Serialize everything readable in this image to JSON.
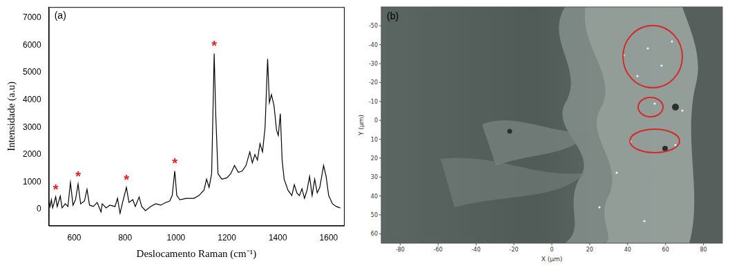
{
  "chart_data": {
    "type": "line",
    "panel": "(a)",
    "xlabel": "Deslocamento Raman (cm⁻¹)",
    "ylabel": "Intensidade (a.u)",
    "color": "#000000",
    "grid": false,
    "x": [
      500,
      505,
      510,
      515,
      520,
      527,
      533,
      545,
      552,
      565,
      575,
      585,
      595,
      605,
      615,
      625,
      640,
      650,
      660,
      675,
      690,
      705,
      710,
      725,
      740,
      760,
      770,
      780,
      790,
      805,
      815,
      830,
      840,
      855,
      865,
      880,
      900,
      920,
      940,
      960,
      975,
      985,
      995,
      1003,
      1015,
      1040,
      1070,
      1090,
      1110,
      1120,
      1130,
      1140,
      1150,
      1156,
      1165,
      1180,
      1200,
      1215,
      1230,
      1245,
      1260,
      1275,
      1290,
      1300,
      1310,
      1320,
      1330,
      1340,
      1350,
      1360,
      1367,
      1375,
      1385,
      1395,
      1402,
      1410,
      1417,
      1425,
      1440,
      1455,
      1465,
      1475,
      1485,
      1495,
      1505,
      1515,
      1525,
      1535,
      1545,
      1555,
      1565,
      1580,
      1590,
      1600,
      1615,
      1630,
      1645
    ],
    "values": [
      300,
      100,
      350,
      50,
      200,
      460,
      100,
      480,
      50,
      200,
      100,
      980,
      150,
      350,
      930,
      200,
      300,
      730,
      150,
      100,
      250,
      -100,
      200,
      50,
      150,
      100,
      400,
      -150,
      250,
      800,
      250,
      350,
      100,
      450,
      100,
      -50,
      100,
      200,
      150,
      250,
      300,
      500,
      1400,
      500,
      350,
      400,
      400,
      500,
      700,
      1100,
      800,
      1300,
      5700,
      3500,
      1300,
      1100,
      1150,
      1300,
      1600,
      1350,
      1400,
      1600,
      2100,
      1700,
      2000,
      1800,
      2400,
      2100,
      3000,
      5500,
      3900,
      4200,
      3800,
      2900,
      2700,
      3500,
      1800,
      1100,
      700,
      500,
      900,
      600,
      500,
      750,
      400,
      700,
      1200,
      500,
      1100,
      600,
      800,
      1600,
      1200,
      500,
      200,
      100,
      50
    ],
    "xlim": [
      500,
      1660
    ],
    "xticks": [
      600,
      800,
      1000,
      1200,
      1400,
      1600
    ],
    "ylim": [
      -600,
      7400
    ],
    "yticks": [
      0,
      1000,
      2000,
      3000,
      4000,
      5000,
      6000,
      7000
    ],
    "annotations": [
      {
        "text": "*",
        "x": 527,
        "y": 700,
        "color": "#e02020"
      },
      {
        "text": "*",
        "x": 615,
        "y": 1180,
        "color": "#e02020"
      },
      {
        "text": "*",
        "x": 805,
        "y": 1050,
        "color": "#e02020"
      },
      {
        "text": "*",
        "x": 995,
        "y": 1650,
        "color": "#e02020"
      },
      {
        "text": "*",
        "x": 1150,
        "y": 5950,
        "color": "#e02020"
      }
    ]
  },
  "micrograph": {
    "panel": "(b)",
    "xlabel": "X (µm)",
    "ylabel": "Y (µm)",
    "xlim": [
      -90,
      90
    ],
    "xticks": [
      -80,
      -60,
      -40,
      -20,
      0,
      20,
      40,
      60,
      80
    ],
    "ylim": [
      -60,
      65
    ],
    "yticks": [
      -50,
      -40,
      -30,
      -20,
      -10,
      0,
      10,
      20,
      30,
      40,
      50,
      60
    ],
    "marker_color": "#d42a2a"
  }
}
